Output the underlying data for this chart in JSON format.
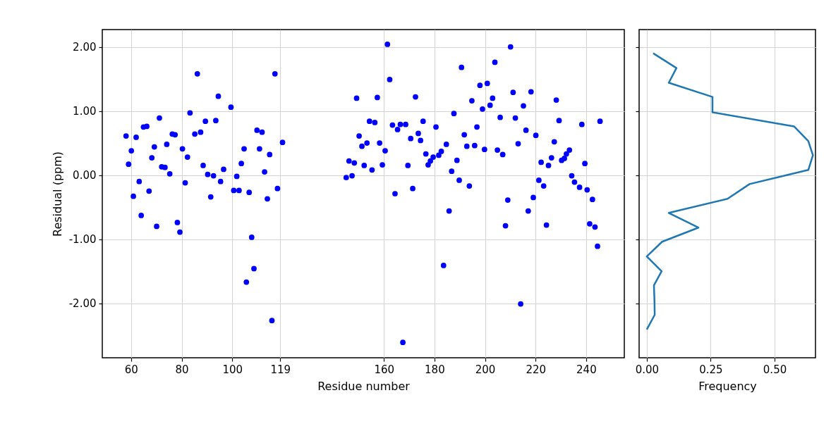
{
  "chart_data": [
    {
      "type": "scatter",
      "xlabel": "Residue number",
      "ylabel": "Residual (ppm)",
      "color": "#0000ff",
      "marker": "circle",
      "grid": true,
      "x": [
        58.0,
        59.0,
        60.1,
        60.9,
        62.0,
        63.2,
        64.0,
        64.9,
        66.2,
        67.1,
        68.2,
        69.2,
        70.1,
        71.2,
        72.1,
        73.4,
        74.1,
        75.3,
        76.3,
        77.4,
        78.3,
        79.3,
        80.3,
        81.4,
        82.3,
        83.3,
        85.2,
        86.2,
        87.5,
        88.5,
        89.4,
        90.3,
        91.5,
        92.6,
        93.5,
        94.5,
        95.4,
        96.6,
        99.5,
        100.6,
        101.8,
        102.7,
        103.6,
        104.7,
        105.6,
        106.7,
        107.7,
        108.6,
        109.8,
        110.8,
        111.8,
        112.8,
        113.9,
        114.8,
        115.7,
        116.9,
        117.9,
        119.9,
        145.1,
        146.2,
        147.4,
        148.3,
        149.2,
        150.2,
        151.3,
        152.2,
        153.3,
        154.3,
        155.3,
        156.4,
        157.4,
        158.3,
        159.4,
        160.5,
        161.4,
        162.3,
        163.4,
        164.4,
        165.4,
        166.5,
        167.5,
        168.6,
        169.5,
        170.6,
        171.4,
        172.5,
        173.6,
        174.5,
        175.5,
        176.6,
        177.5,
        178.4,
        179.5,
        180.6,
        181.7,
        182.7,
        183.6,
        184.7,
        185.8,
        186.8,
        187.7,
        188.9,
        189.8,
        190.7,
        191.8,
        192.8,
        193.8,
        194.8,
        195.9,
        196.8,
        198.0,
        199.0,
        199.8,
        200.9,
        202.0,
        203.0,
        203.9,
        204.9,
        206.0,
        207.0,
        208.1,
        209.0,
        210.1,
        211.1,
        212.0,
        213.1,
        214.1,
        215.2,
        216.2,
        217.1,
        218.2,
        219.1,
        220.1,
        221.3,
        222.2,
        223.2,
        224.3,
        225.1,
        226.3,
        227.4,
        228.2,
        229.3,
        230.3,
        231.4,
        232.2,
        233.4,
        234.3,
        235.4,
        237.4,
        238.3,
        239.5,
        240.4,
        241.4,
        242.5,
        243.5,
        244.5,
        245.5
      ],
      "values": [
        0.61,
        0.17,
        0.38,
        -0.33,
        0.59,
        -0.1,
        -0.63,
        0.75,
        0.76,
        -0.25,
        0.27,
        0.44,
        -0.8,
        0.89,
        0.13,
        0.12,
        0.48,
        0.02,
        0.64,
        0.63,
        -0.74,
        -0.89,
        0.41,
        -0.12,
        0.28,
        0.97,
        0.64,
        1.58,
        0.67,
        0.15,
        0.84,
        0.01,
        -0.34,
        -0.01,
        0.85,
        1.23,
        -0.1,
        0.09,
        1.06,
        -0.24,
        -0.02,
        -0.24,
        0.18,
        0.41,
        -1.67,
        -0.27,
        -0.97,
        -1.46,
        0.7,
        0.41,
        0.67,
        0.05,
        -0.37,
        0.32,
        -2.27,
        1.58,
        -0.21,
        0.51,
        -0.04,
        0.22,
        -0.01,
        0.19,
        1.2,
        0.61,
        0.45,
        0.15,
        0.5,
        0.84,
        0.08,
        0.82,
        1.21,
        0.5,
        0.16,
        0.38,
        2.04,
        1.49,
        0.78,
        -0.29,
        0.71,
        0.79,
        -2.61,
        0.79,
        0.15,
        0.57,
        -0.21,
        1.22,
        0.65,
        0.54,
        0.84,
        0.33,
        0.16,
        0.22,
        0.28,
        0.75,
        0.31,
        0.37,
        -1.41,
        0.48,
        -0.56,
        0.06,
        0.96,
        0.23,
        -0.08,
        1.68,
        0.63,
        0.45,
        -0.17,
        1.16,
        0.46,
        0.75,
        1.4,
        1.03,
        0.4,
        1.43,
        1.09,
        1.2,
        1.76,
        0.39,
        0.9,
        0.32,
        -0.79,
        -0.39,
        2.0,
        1.29,
        0.89,
        0.49,
        -2.01,
        1.08,
        0.7,
        -0.56,
        1.3,
        -0.35,
        0.62,
        -0.08,
        0.2,
        -0.17,
        -0.78,
        0.15,
        0.27,
        0.52,
        1.17,
        0.85,
        0.23,
        0.26,
        0.33,
        0.39,
        -0.01,
        -0.11,
        -0.19,
        0.79,
        0.18,
        -0.23,
        -0.76,
        -0.38,
        -0.81,
        -1.11,
        0.84
      ],
      "xlim": [
        48.6,
        255.1
      ],
      "xticks": [
        60,
        80,
        100,
        119,
        160,
        180,
        200,
        220,
        240
      ],
      "ylim": [
        -2.85,
        2.27
      ],
      "yticks": [
        {
          "value": 2,
          "label": "2.00"
        },
        {
          "value": 1,
          "label": "1.00"
        },
        {
          "value": 0,
          "label": "0.00"
        },
        {
          "value": -1,
          "label": "-1.00"
        },
        {
          "value": -2,
          "label": "-2.00"
        }
      ]
    },
    {
      "type": "line",
      "xlabel": "Frequency",
      "color": "#1f77b4",
      "grid": true,
      "tick_labels": "x",
      "x": [
        0.025,
        0.116,
        0.086,
        0.257,
        0.257,
        0.576,
        0.632,
        0.65,
        0.632,
        0.402,
        0.316,
        0.086,
        0.202,
        0.06,
        0.0,
        0.058,
        0.028,
        0.03,
        0.031,
        0.0
      ],
      "values": [
        1.9,
        1.67,
        1.44,
        1.22,
        0.98,
        0.76,
        0.53,
        0.31,
        0.08,
        -0.14,
        -0.37,
        -0.59,
        -0.82,
        -1.04,
        -1.27,
        -1.5,
        -1.72,
        -1.95,
        -2.18,
        -2.41
      ],
      "xlim": [
        -0.03,
        0.66
      ],
      "xticks": [
        {
          "value": 0,
          "label": "0.00"
        },
        0.25,
        {
          "value": 0.5,
          "label": "0.50"
        }
      ],
      "ylim": [
        -2.85,
        2.27
      ],
      "yticks": [
        {
          "value": 2,
          "label": null
        },
        {
          "value": 1,
          "label": null
        },
        {
          "value": 0,
          "label": null
        },
        {
          "value": -1,
          "label": null
        },
        {
          "value": -2,
          "label": null
        }
      ]
    }
  ]
}
